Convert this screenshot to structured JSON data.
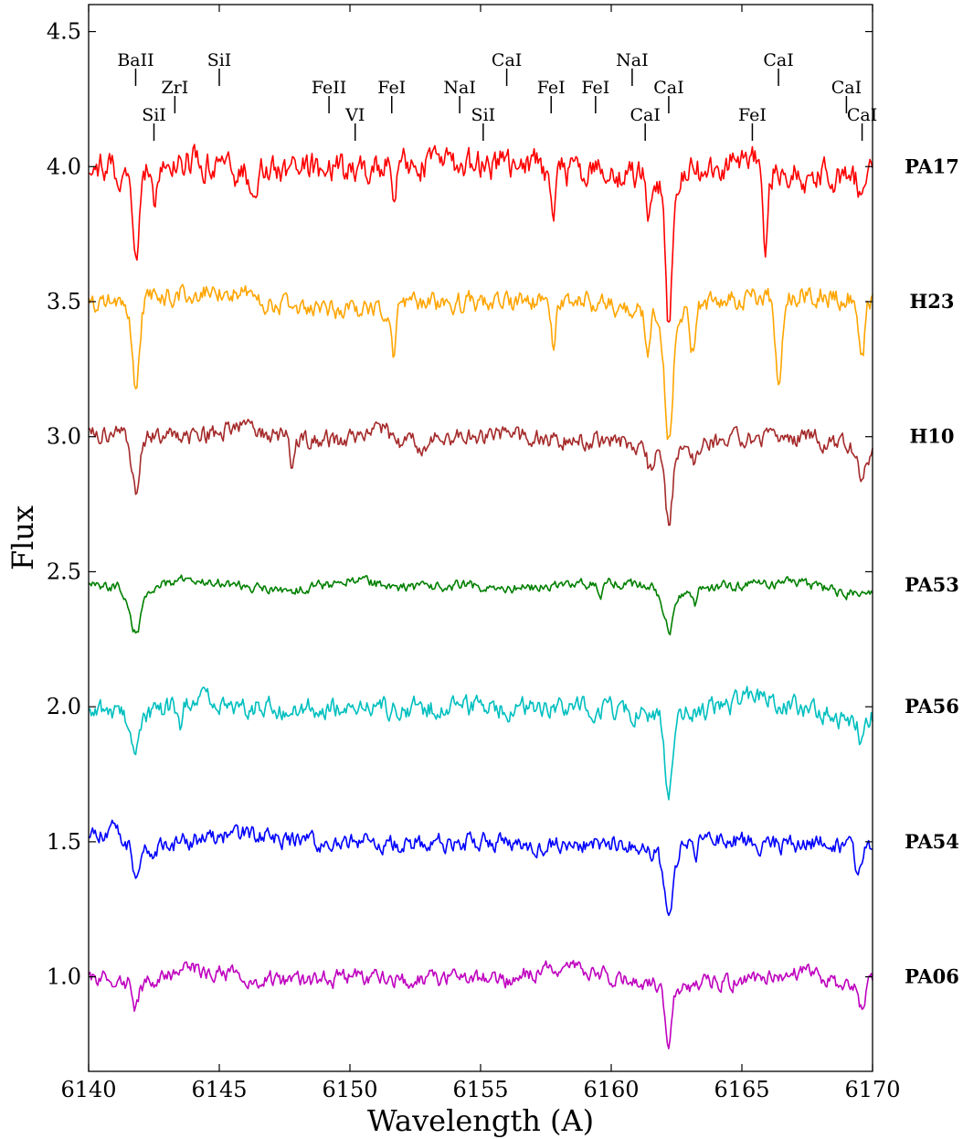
{
  "chart_data": {
    "type": "line",
    "title": "",
    "xlabel": "Wavelength (A)",
    "ylabel": "Flux",
    "xlim": [
      6140,
      6170
    ],
    "ylim": [
      0.65,
      4.6
    ],
    "xticks": [
      6140,
      6145,
      6150,
      6155,
      6160,
      6165,
      6170
    ],
    "xtick_labels": [
      "6140",
      "6145",
      "6150",
      "6155",
      "6160",
      "6165",
      "6170"
    ],
    "yticks": [
      1.0,
      1.5,
      2.0,
      2.5,
      3.0,
      3.5,
      4.0,
      4.5
    ],
    "ytick_labels": [
      "1.0",
      "1.5",
      "2.0",
      "2.5",
      "3.0",
      "3.5",
      "4.0",
      "4.5"
    ],
    "grid": false,
    "legend": "none",
    "line_labels": [
      {
        "text": "BaII",
        "x": 6141.8,
        "tier": 1
      },
      {
        "text": "ZrI",
        "x": 6143.3,
        "tier": 2
      },
      {
        "text": "SiI",
        "x": 6142.5,
        "tier": 3
      },
      {
        "text": "SiI",
        "x": 6145.0,
        "tier": 1
      },
      {
        "text": "FeII",
        "x": 6149.2,
        "tier": 2
      },
      {
        "text": "VI",
        "x": 6150.2,
        "tier": 3
      },
      {
        "text": "FeI",
        "x": 6151.6,
        "tier": 2
      },
      {
        "text": "NaI",
        "x": 6154.2,
        "tier": 2
      },
      {
        "text": "SiI",
        "x": 6155.1,
        "tier": 3
      },
      {
        "text": "CaI",
        "x": 6156.0,
        "tier": 1
      },
      {
        "text": "FeI",
        "x": 6157.7,
        "tier": 2
      },
      {
        "text": "FeI",
        "x": 6159.4,
        "tier": 2
      },
      {
        "text": "NaI",
        "x": 6160.8,
        "tier": 1
      },
      {
        "text": "CaI",
        "x": 6161.3,
        "tier": 3
      },
      {
        "text": "CaI",
        "x": 6162.2,
        "tier": 2
      },
      {
        "text": "FeI",
        "x": 6165.4,
        "tier": 3
      },
      {
        "text": "CaI",
        "x": 6166.4,
        "tier": 1
      },
      {
        "text": "CaI",
        "x": 6169.0,
        "tier": 2
      },
      {
        "text": "CaI",
        "x": 6169.6,
        "tier": 3
      }
    ],
    "series": [
      {
        "name": "PA17",
        "color": "#ff0000",
        "offset": 4.0,
        "noise": 0.075,
        "seed": 17,
        "points": [
          [
            6140,
            4.0
          ],
          [
            6142,
            3.98
          ],
          [
            6144,
            4.02
          ],
          [
            6146,
            3.97
          ],
          [
            6148,
            4.0
          ],
          [
            6150,
            3.98
          ],
          [
            6152,
            4.02
          ],
          [
            6154,
            4.0
          ],
          [
            6156,
            4.02
          ],
          [
            6158,
            3.98
          ],
          [
            6160,
            3.97
          ],
          [
            6161.5,
            3.95
          ],
          [
            6163,
            3.97
          ],
          [
            6165,
            4.02
          ],
          [
            6167,
            3.97
          ],
          [
            6169,
            3.95
          ],
          [
            6170,
            3.97
          ]
        ],
        "features": [
          {
            "x": 6141.8,
            "depth": 0.38,
            "width": 0.12
          },
          {
            "x": 6142.5,
            "depth": 0.12,
            "width": 0.08
          },
          {
            "x": 6151.7,
            "depth": 0.18,
            "width": 0.08
          },
          {
            "x": 6157.8,
            "depth": 0.18,
            "width": 0.08
          },
          {
            "x": 6161.4,
            "depth": 0.12,
            "width": 0.08
          },
          {
            "x": 6162.2,
            "depth": 0.58,
            "width": 0.12
          },
          {
            "x": 6165.9,
            "depth": 0.28,
            "width": 0.07
          },
          {
            "x": 6169.6,
            "depth": 0.12,
            "width": 0.12
          }
        ]
      },
      {
        "name": "H23",
        "color": "#ffa500",
        "offset": 3.5,
        "noise": 0.05,
        "seed": 23,
        "points": [
          [
            6140,
            3.5
          ],
          [
            6143,
            3.52
          ],
          [
            6145,
            3.55
          ],
          [
            6147,
            3.5
          ],
          [
            6150,
            3.47
          ],
          [
            6152,
            3.48
          ],
          [
            6154,
            3.5
          ],
          [
            6156,
            3.49
          ],
          [
            6158,
            3.5
          ],
          [
            6160,
            3.49
          ],
          [
            6162,
            3.45
          ],
          [
            6164,
            3.5
          ],
          [
            6166,
            3.52
          ],
          [
            6168,
            3.53
          ],
          [
            6170,
            3.5
          ]
        ],
        "features": [
          {
            "x": 6141.8,
            "depth": 0.32,
            "width": 0.14
          },
          {
            "x": 6151.7,
            "depth": 0.17,
            "width": 0.08
          },
          {
            "x": 6157.8,
            "depth": 0.18,
            "width": 0.08
          },
          {
            "x": 6161.4,
            "depth": 0.15,
            "width": 0.1
          },
          {
            "x": 6162.2,
            "depth": 0.44,
            "width": 0.16
          },
          {
            "x": 6163.1,
            "depth": 0.18,
            "width": 0.1
          },
          {
            "x": 6166.4,
            "depth": 0.32,
            "width": 0.12
          },
          {
            "x": 6169.6,
            "depth": 0.22,
            "width": 0.1
          }
        ]
      },
      {
        "name": "H10",
        "color": "#a52a2a",
        "offset": 3.0,
        "noise": 0.045,
        "seed": 10,
        "points": [
          [
            6140,
            3.02
          ],
          [
            6142,
            3.0
          ],
          [
            6144,
            3.0
          ],
          [
            6146,
            3.04
          ],
          [
            6148,
            2.98
          ],
          [
            6150,
            2.99
          ],
          [
            6151,
            3.06
          ],
          [
            6152,
            2.96
          ],
          [
            6154,
            3.0
          ],
          [
            6156,
            3.0
          ],
          [
            6158,
            2.99
          ],
          [
            6160,
            2.99
          ],
          [
            6162,
            2.96
          ],
          [
            6164,
            2.98
          ],
          [
            6166,
            2.99
          ],
          [
            6168,
            2.99
          ],
          [
            6170,
            2.93
          ]
        ],
        "features": [
          {
            "x": 6141.8,
            "depth": 0.2,
            "width": 0.14
          },
          {
            "x": 6147.8,
            "depth": 0.12,
            "width": 0.08
          },
          {
            "x": 6161.5,
            "depth": 0.1,
            "width": 0.1
          },
          {
            "x": 6162.2,
            "depth": 0.28,
            "width": 0.15
          },
          {
            "x": 6163.2,
            "depth": 0.07,
            "width": 0.1
          },
          {
            "x": 6169.6,
            "depth": 0.1,
            "width": 0.12
          }
        ]
      },
      {
        "name": "PA53",
        "color": "#008000",
        "offset": 2.45,
        "noise": 0.025,
        "seed": 53,
        "points": [
          [
            6140,
            2.45
          ],
          [
            6142,
            2.44
          ],
          [
            6143.5,
            2.47
          ],
          [
            6146,
            2.45
          ],
          [
            6148,
            2.43
          ],
          [
            6150,
            2.47
          ],
          [
            6152,
            2.44
          ],
          [
            6154,
            2.45
          ],
          [
            6156,
            2.44
          ],
          [
            6158,
            2.45
          ],
          [
            6160,
            2.46
          ],
          [
            6161.5,
            2.44
          ],
          [
            6163,
            2.43
          ],
          [
            6165,
            2.45
          ],
          [
            6167,
            2.46
          ],
          [
            6169,
            2.42
          ],
          [
            6170,
            2.42
          ]
        ],
        "features": [
          {
            "x": 6141.8,
            "depth": 0.16,
            "width": 0.22
          },
          {
            "x": 6159.6,
            "depth": 0.05,
            "width": 0.08
          },
          {
            "x": 6162.2,
            "depth": 0.15,
            "width": 0.22
          },
          {
            "x": 6163.2,
            "depth": 0.06,
            "width": 0.08
          }
        ]
      },
      {
        "name": "PA56",
        "color": "#00bfbf",
        "offset": 2.0,
        "noise": 0.05,
        "seed": 56,
        "points": [
          [
            6140,
            2.0
          ],
          [
            6142,
            1.95
          ],
          [
            6144,
            2.03
          ],
          [
            6146,
            2.0
          ],
          [
            6148,
            1.99
          ],
          [
            6150,
            2.0
          ],
          [
            6152,
            1.99
          ],
          [
            6154,
            2.0
          ],
          [
            6156,
            1.99
          ],
          [
            6158,
            2.0
          ],
          [
            6160,
            1.99
          ],
          [
            6162,
            1.96
          ],
          [
            6164,
            1.99
          ],
          [
            6165.5,
            2.04
          ],
          [
            6167,
            2.01
          ],
          [
            6169,
            1.95
          ],
          [
            6170,
            1.97
          ]
        ],
        "features": [
          {
            "x": 6141.8,
            "depth": 0.12,
            "width": 0.12
          },
          {
            "x": 6143.5,
            "depth": 0.1,
            "width": 0.1
          },
          {
            "x": 6162.2,
            "depth": 0.3,
            "width": 0.13
          },
          {
            "x": 6169.6,
            "depth": 0.08,
            "width": 0.12
          }
        ]
      },
      {
        "name": "PA54",
        "color": "#0000ff",
        "offset": 1.5,
        "noise": 0.045,
        "seed": 54,
        "points": [
          [
            6140,
            1.5
          ],
          [
            6141,
            1.54
          ],
          [
            6142,
            1.46
          ],
          [
            6144,
            1.51
          ],
          [
            6146,
            1.53
          ],
          [
            6148,
            1.5
          ],
          [
            6150,
            1.51
          ],
          [
            6152,
            1.49
          ],
          [
            6154,
            1.5
          ],
          [
            6156,
            1.5
          ],
          [
            6158,
            1.49
          ],
          [
            6160,
            1.5
          ],
          [
            6162,
            1.46
          ],
          [
            6164,
            1.52
          ],
          [
            6166,
            1.49
          ],
          [
            6168,
            1.5
          ],
          [
            6170,
            1.47
          ]
        ],
        "features": [
          {
            "x": 6141.8,
            "depth": 0.1,
            "width": 0.14
          },
          {
            "x": 6162.2,
            "depth": 0.2,
            "width": 0.18
          },
          {
            "x": 6163.2,
            "depth": 0.06,
            "width": 0.08
          },
          {
            "x": 6169.4,
            "depth": 0.07,
            "width": 0.14
          }
        ]
      },
      {
        "name": "PA06",
        "color": "#bf00bf",
        "offset": 1.0,
        "noise": 0.04,
        "seed": 6,
        "points": [
          [
            6140,
            1.0
          ],
          [
            6142,
            0.97
          ],
          [
            6144,
            1.03
          ],
          [
            6146,
            1.0
          ],
          [
            6148,
            0.98
          ],
          [
            6150,
            1.0
          ],
          [
            6152,
            0.99
          ],
          [
            6154,
            1.0
          ],
          [
            6156,
            0.99
          ],
          [
            6158,
            1.04
          ],
          [
            6160,
            1.0
          ],
          [
            6162,
            0.96
          ],
          [
            6164,
            0.98
          ],
          [
            6166,
            1.0
          ],
          [
            6167.5,
            1.03
          ],
          [
            6169,
            0.96
          ],
          [
            6170,
            1.0
          ]
        ],
        "features": [
          {
            "x": 6141.8,
            "depth": 0.08,
            "width": 0.1
          },
          {
            "x": 6162.2,
            "depth": 0.25,
            "width": 0.12
          },
          {
            "x": 6169.6,
            "depth": 0.1,
            "width": 0.12
          }
        ]
      }
    ]
  }
}
